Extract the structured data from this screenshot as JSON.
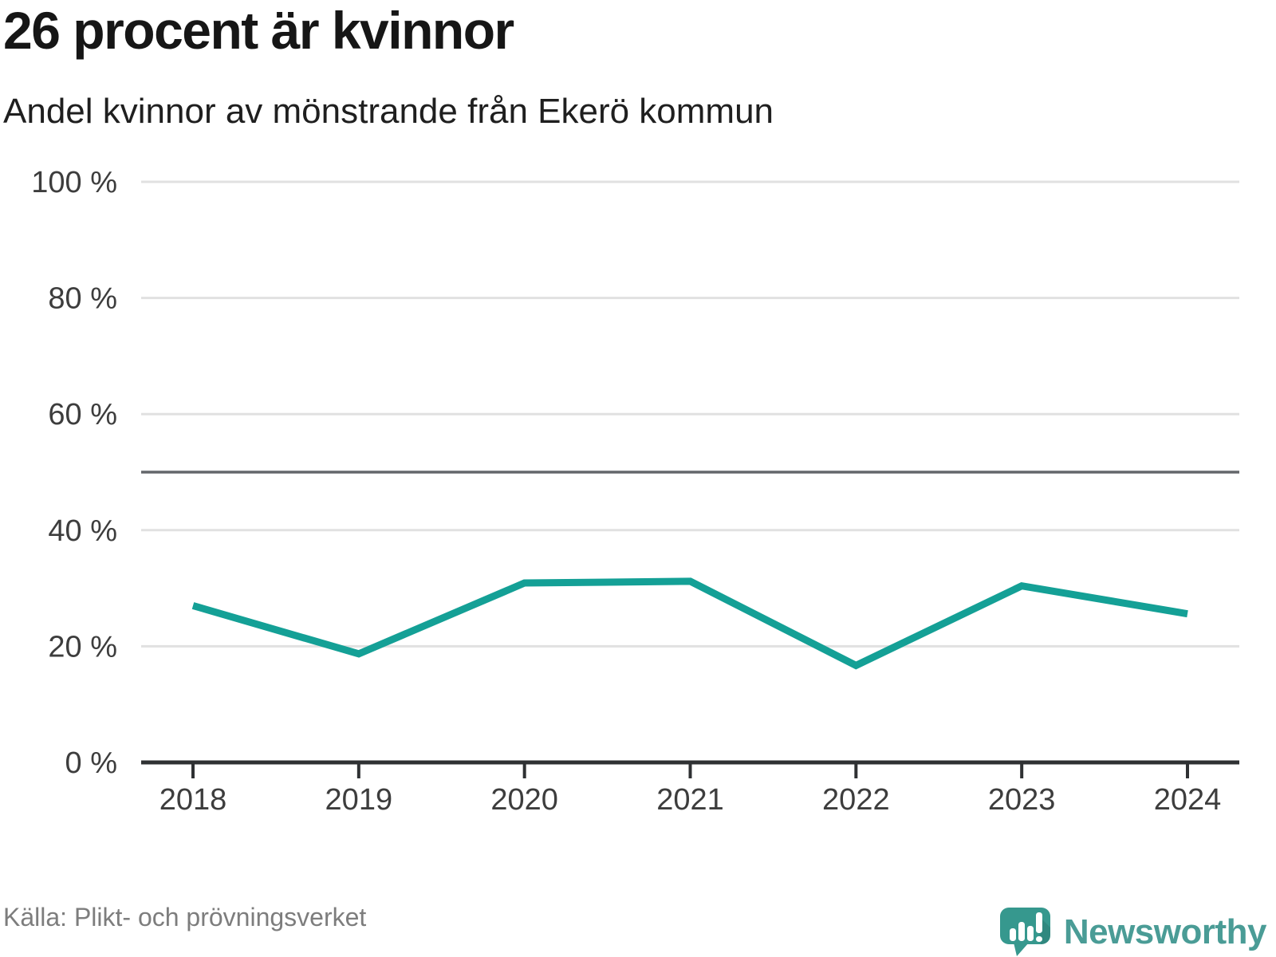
{
  "header": {
    "title": "26 procent är kvinnor",
    "subtitle": "Andel kvinnor av mönstrande från Ekerö kommun"
  },
  "chart_data": {
    "type": "line",
    "title": "26 procent är kvinnor",
    "subtitle": "Andel kvinnor av mönstrande från Ekerö kommun",
    "x": [
      2018,
      2019,
      2020,
      2021,
      2022,
      2023,
      2024
    ],
    "series": [
      {
        "name": "Andel kvinnor av mönstrande",
        "values": [
          27.0,
          18.7,
          30.9,
          31.2,
          16.7,
          30.4,
          25.6
        ]
      }
    ],
    "unit": "%",
    "ylim": [
      0,
      100
    ],
    "yticks": [
      0,
      20,
      40,
      60,
      80,
      100
    ],
    "ytick_suffix": " %",
    "reference_line": 50,
    "grid": true,
    "legend": "none",
    "colors": {
      "line": "#14a096",
      "grid": "#e1e1e1",
      "reference": "#64676b",
      "axis": "#2f3133",
      "tick_label": "#3d3d3d"
    }
  },
  "footer": {
    "source": "Källa: Plikt- och prövningsverket",
    "brand": "Newsworthy",
    "brand_icon_color": "#36988e",
    "brand_text_color": "#4a9c96"
  }
}
